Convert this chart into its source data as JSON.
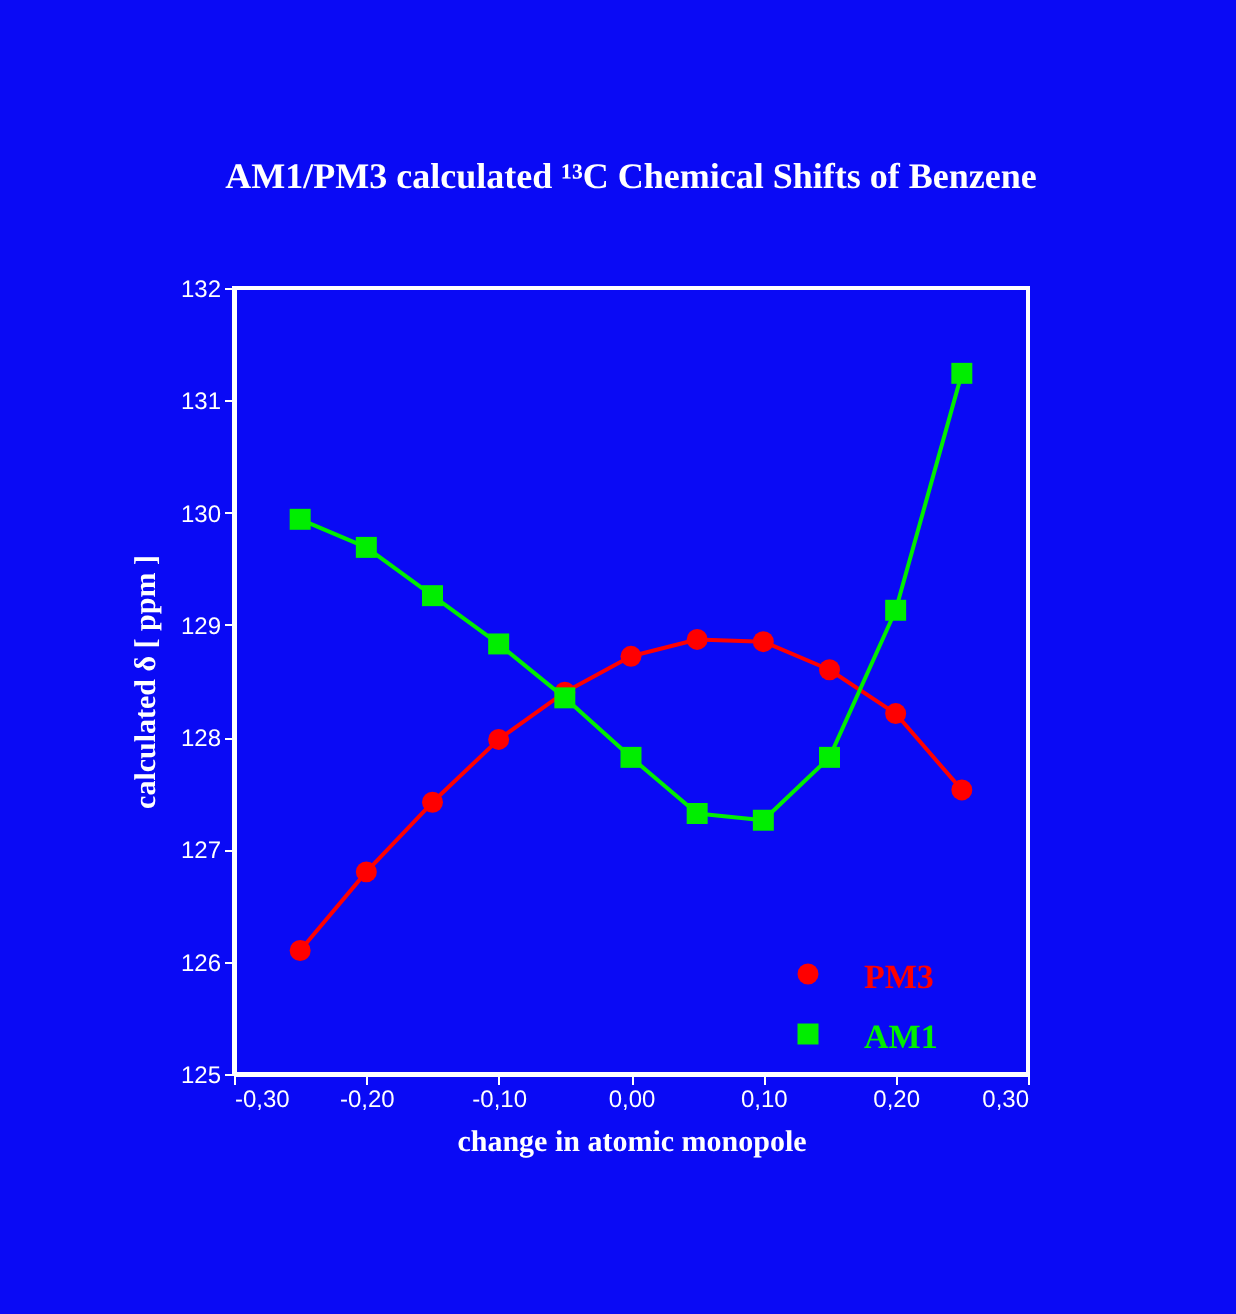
{
  "chart_data": {
    "type": "line",
    "title": "AM1/PM3 calculated ¹³C Chemical Shifts of Benzene",
    "xlabel": "change in atomic monopole",
    "ylabel": "calculated δ [ ppm ]",
    "x": [
      -0.25,
      -0.2,
      -0.15,
      -0.1,
      -0.05,
      0.0,
      0.05,
      0.1,
      0.15,
      0.2,
      0.25
    ],
    "series": [
      {
        "name": "PM3",
        "color": "#ff0000",
        "marker": "circle",
        "values": [
          126.1,
          126.8,
          127.42,
          127.98,
          128.4,
          128.72,
          128.87,
          128.85,
          128.6,
          128.21,
          127.53
        ]
      },
      {
        "name": "AM1",
        "color": "#00ee00",
        "marker": "square",
        "values": [
          129.94,
          129.69,
          129.26,
          128.83,
          128.35,
          127.82,
          127.32,
          127.26,
          127.82,
          129.13,
          131.24
        ]
      }
    ],
    "xlim": [
      -0.3,
      0.3
    ],
    "ylim": [
      125,
      132
    ],
    "xticks": [
      {
        "value": -0.3,
        "label": "-0,30"
      },
      {
        "value": -0.2,
        "label": "-0,20"
      },
      {
        "value": -0.1,
        "label": "-0,10"
      },
      {
        "value": 0.0,
        "label": "0,00"
      },
      {
        "value": 0.1,
        "label": "0,10"
      },
      {
        "value": 0.2,
        "label": "0,20"
      },
      {
        "value": 0.3,
        "label": "0,30"
      }
    ],
    "yticks": [
      125,
      126,
      127,
      128,
      129,
      130,
      131,
      132
    ],
    "grid": false,
    "legend": "bottom right",
    "line_style": "solid"
  }
}
